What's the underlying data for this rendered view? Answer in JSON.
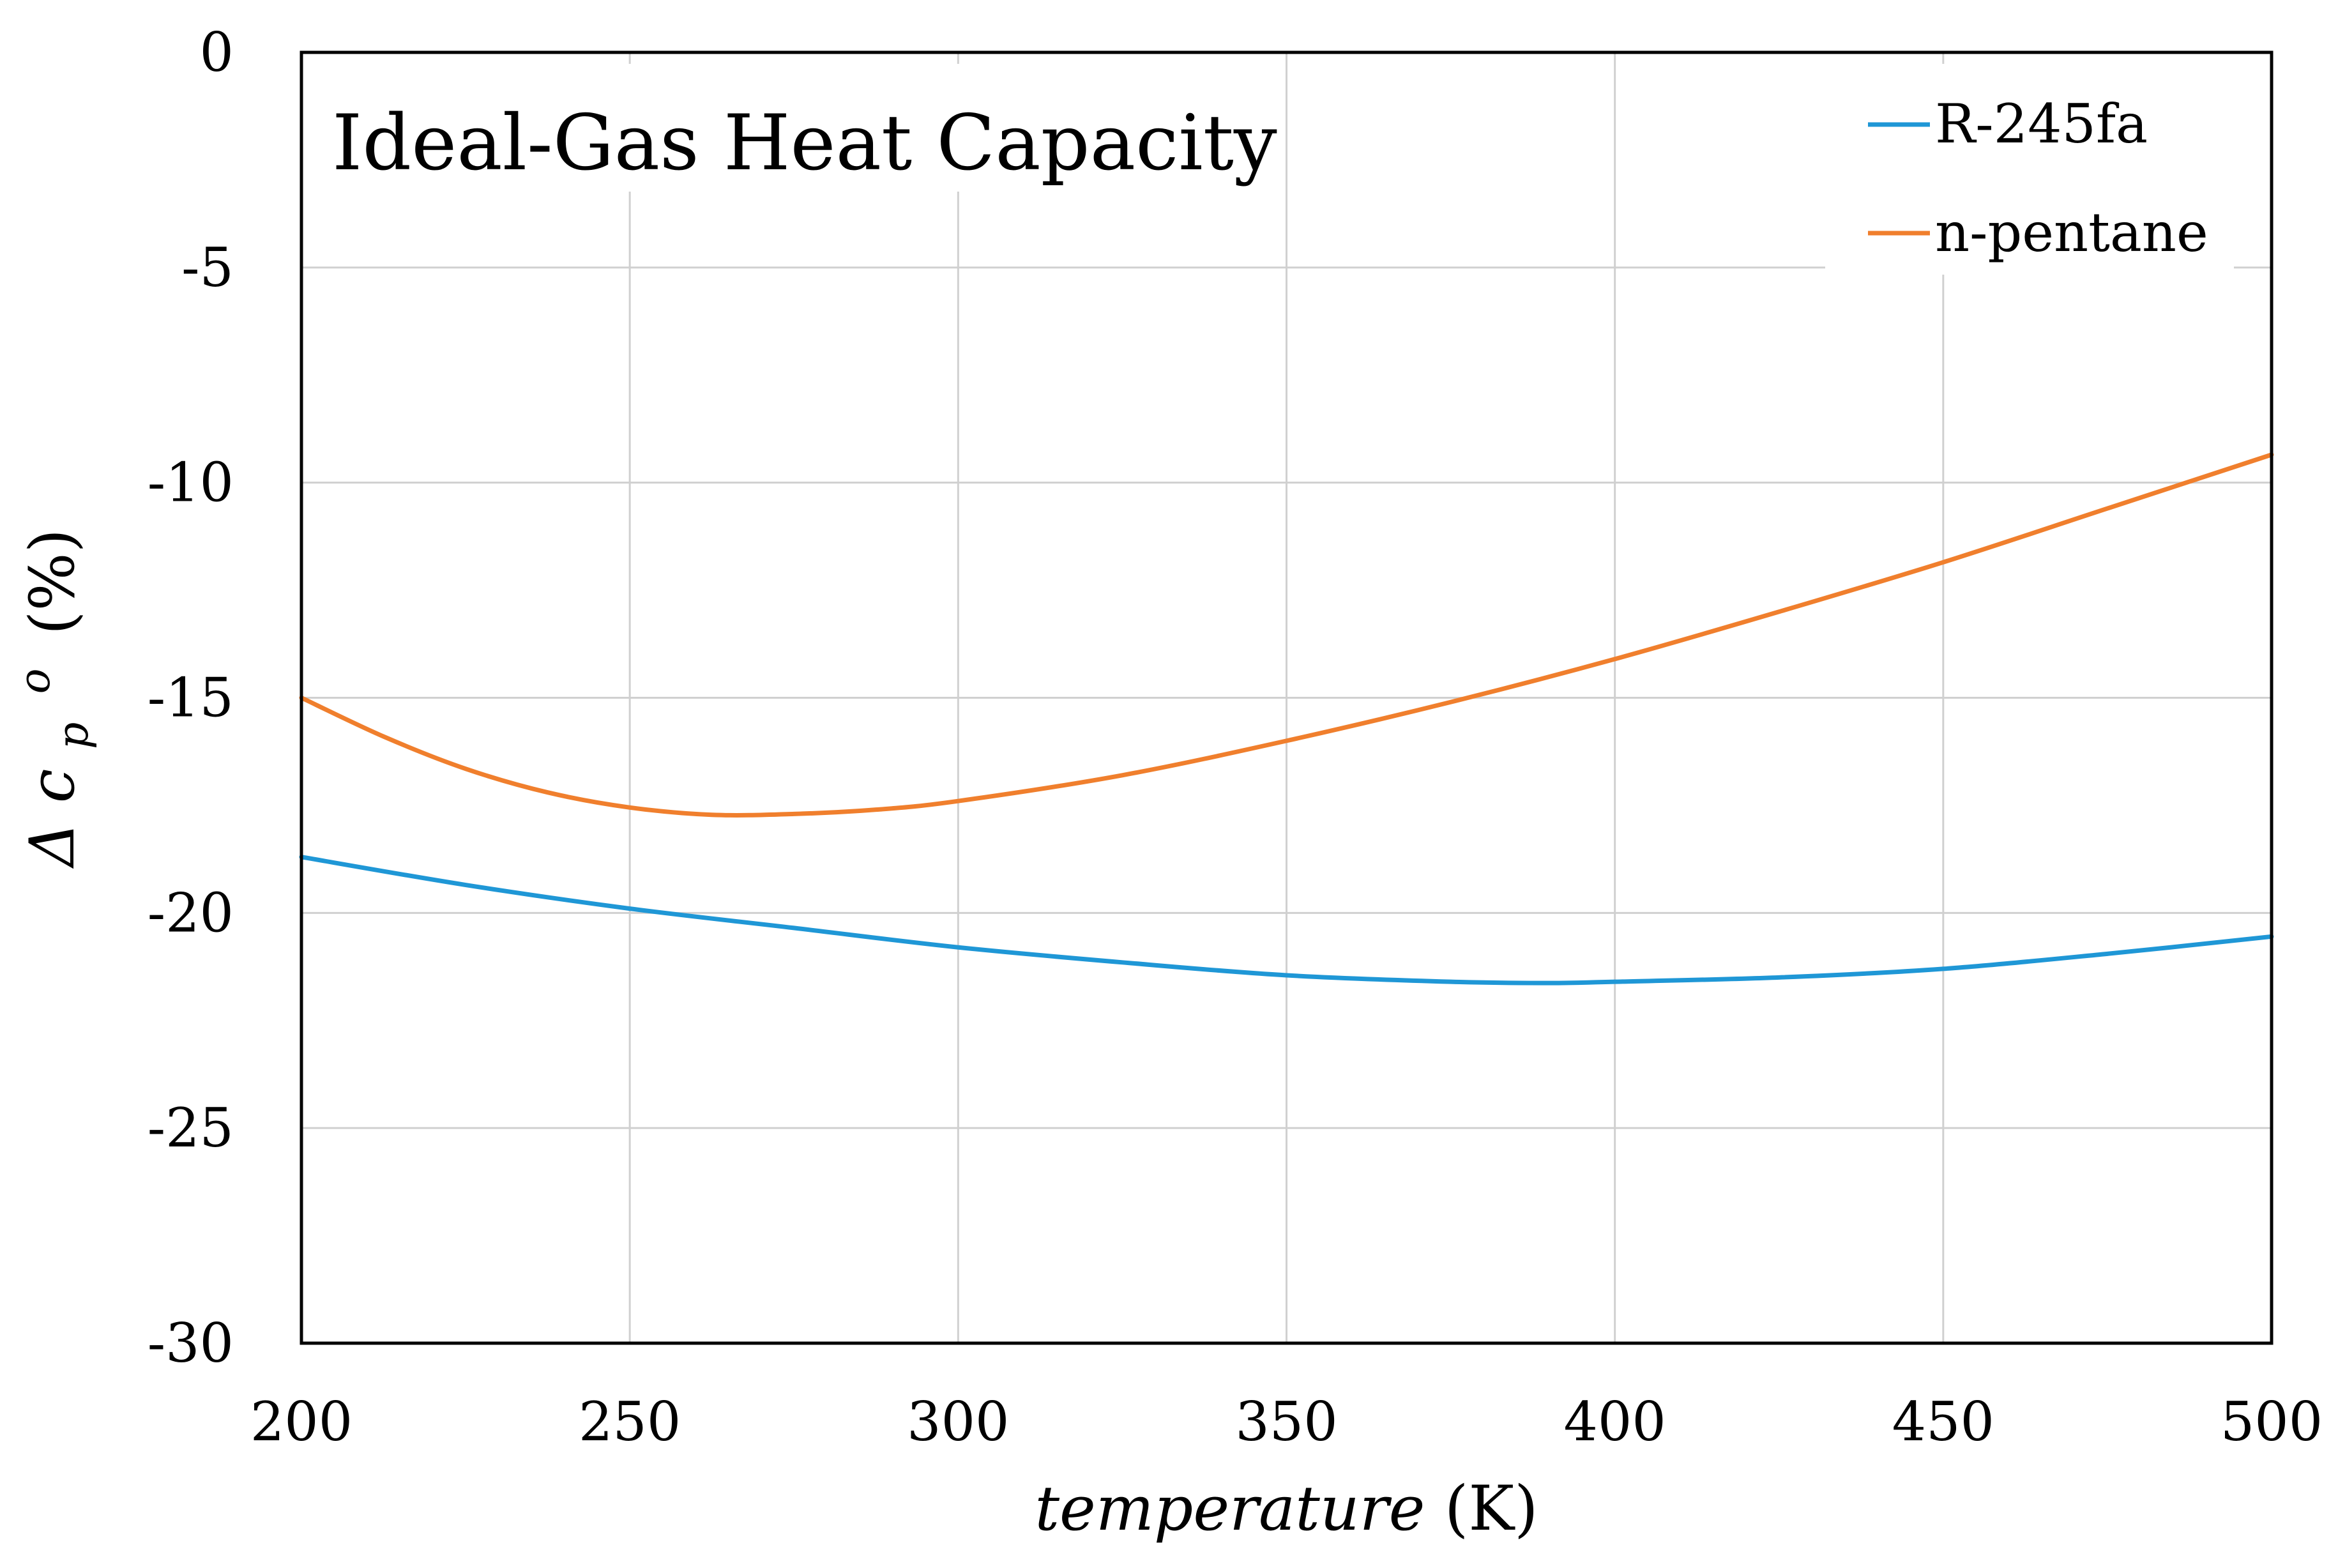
{
  "chart_data": {
    "type": "line",
    "title": "Ideal-Gas Heat Capacity",
    "xlabel": {
      "italic": "temperature",
      "unit": "(K)"
    },
    "ylabel": {
      "delta": "Δ",
      "symbol": "c",
      "subscript": "p",
      "superscript": "o",
      "unit": "(%)"
    },
    "xlim": [
      200,
      500
    ],
    "ylim": [
      -30,
      0
    ],
    "x_ticks": [
      200,
      250,
      300,
      350,
      400,
      450,
      500
    ],
    "y_ticks": [
      0,
      -5,
      -10,
      -15,
      -20,
      -25,
      -30
    ],
    "x_tick_labels": [
      "200",
      "250",
      "300",
      "350",
      "400",
      "450",
      "500"
    ],
    "y_tick_labels": [
      "0",
      "-5",
      "-10",
      "-15",
      "-20",
      "-25",
      "-30"
    ],
    "grid": true,
    "legend_position": "top-right",
    "series": [
      {
        "name": "R-245fa",
        "color": "#1f97d6",
        "x": [
          200,
          225,
          250,
          275,
          300,
          325,
          350,
          375,
          390,
          400,
          425,
          450,
          475,
          500
        ],
        "y": [
          -18.7,
          -19.35,
          -19.9,
          -20.35,
          -20.8,
          -21.15,
          -21.45,
          -21.6,
          -21.63,
          -21.6,
          -21.5,
          -21.3,
          -20.95,
          -20.55
        ]
      },
      {
        "name": "n-pentane",
        "color": "#f07f2d",
        "x": [
          200,
          212.5,
          225,
          237.5,
          250,
          262.5,
          275,
          287.5,
          300,
          325,
          350,
          375,
          400,
          425,
          450,
          475,
          500
        ],
        "y": [
          -15.0,
          -15.9,
          -16.65,
          -17.2,
          -17.55,
          -17.72,
          -17.7,
          -17.6,
          -17.4,
          -16.8,
          -16.0,
          -15.1,
          -14.1,
          -13.0,
          -11.85,
          -10.6,
          -9.35
        ]
      }
    ]
  }
}
